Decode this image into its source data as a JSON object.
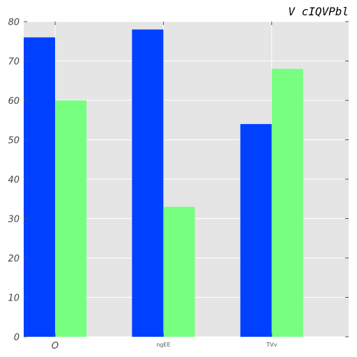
{
  "chart_data": {
    "type": "bar",
    "title": "V cIQVPbl",
    "xlabel": "",
    "ylabel": "",
    "categories": [
      "O",
      "ngEE",
      "TVv"
    ],
    "series": [
      {
        "values": [
          76,
          78,
          54
        ],
        "color": "#0040ff"
      },
      {
        "values": [
          60,
          33,
          68
        ],
        "color": "#77ff80"
      }
    ],
    "ylim": [
      0,
      80
    ],
    "yticks": [
      0,
      10,
      20,
      30,
      40,
      50,
      60,
      70,
      80
    ],
    "grid": true,
    "plot_background": "#e5e5e5",
    "grid_color": "#ffffff"
  }
}
